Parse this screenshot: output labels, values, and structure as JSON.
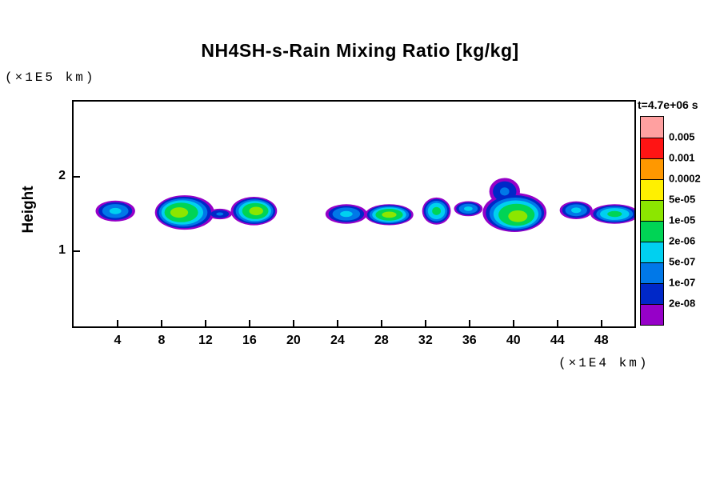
{
  "chart_data": {
    "type": "heatmap",
    "title": "NH4SH-s-Rain Mixing Ratio [kg/kg]",
    "ylabel": "Height",
    "y_axis_unit": "(×1E5 km)",
    "x_axis_unit": "(×1E4 km)",
    "time_annotation": "t=4.7e+06 s",
    "xlim": [
      0,
      51
    ],
    "ylim": [
      0,
      3
    ],
    "x_ticks": [
      4,
      8,
      12,
      16,
      20,
      24,
      28,
      32,
      36,
      40,
      44,
      48
    ],
    "y_ticks": [
      1,
      2
    ],
    "grid": false,
    "legend_position": "right",
    "colorbar_levels": [
      {
        "label": "0.005",
        "color": "#ffa0a0"
      },
      {
        "label": "0.001",
        "color": "#ff1414"
      },
      {
        "label": "0.0002",
        "color": "#ff9800"
      },
      {
        "label": "5e-05",
        "color": "#fff000"
      },
      {
        "label": "1e-05",
        "color": "#8ce600"
      },
      {
        "label": "2e-06",
        "color": "#00d455"
      },
      {
        "label": "5e-07",
        "color": "#00d0f0"
      },
      {
        "label": "1e-07",
        "color": "#0078e8"
      },
      {
        "label": "2e-08",
        "color": "#0028c8"
      },
      {
        "label": "",
        "color": "#9600c8"
      }
    ],
    "clouds": [
      {
        "cx": 3.8,
        "cy": 1.54,
        "rx": 1.8,
        "ry": 0.14,
        "core": 6
      },
      {
        "cx": 10.1,
        "cy": 1.52,
        "rx": 2.7,
        "ry": 0.23,
        "core": 4,
        "dx": -0.5
      },
      {
        "cx": 13.3,
        "cy": 1.5,
        "rx": 1.1,
        "ry": 0.07,
        "core": 7
      },
      {
        "cx": 16.4,
        "cy": 1.54,
        "rx": 2.1,
        "ry": 0.19,
        "core": 4,
        "dx": 0.2
      },
      {
        "cx": 24.8,
        "cy": 1.5,
        "rx": 1.9,
        "ry": 0.13,
        "core": 6
      },
      {
        "cx": 28.7,
        "cy": 1.49,
        "rx": 2.2,
        "ry": 0.14,
        "core": 4
      },
      {
        "cx": 33.0,
        "cy": 1.54,
        "rx": 1.3,
        "ry": 0.18,
        "core": 5
      },
      {
        "cx": 35.9,
        "cy": 1.57,
        "rx": 1.3,
        "ry": 0.1,
        "core": 6
      },
      {
        "cx": 40.1,
        "cy": 1.52,
        "rx": 2.9,
        "ry": 0.26,
        "core": 4,
        "dx": 0.3,
        "dy": -0.05
      },
      {
        "cx": 39.2,
        "cy": 1.8,
        "rx": 1.4,
        "ry": 0.18,
        "core": 7
      },
      {
        "cx": 45.7,
        "cy": 1.55,
        "rx": 1.5,
        "ry": 0.12,
        "core": 6
      },
      {
        "cx": 49.2,
        "cy": 1.5,
        "rx": 2.2,
        "ry": 0.13,
        "core": 5
      }
    ]
  }
}
